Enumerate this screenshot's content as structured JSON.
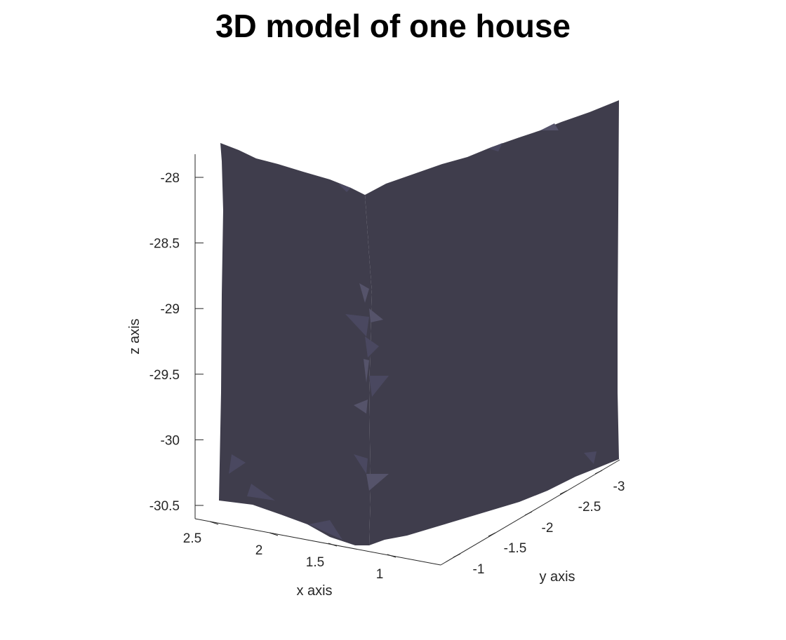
{
  "chart_data": {
    "type": "surface",
    "title": "3D model of one house",
    "xlabel": "x axis",
    "ylabel": "y axis",
    "zlabel": "z axis",
    "xlim": [
      0.7,
      2.7
    ],
    "ylim": [
      -3.2,
      -0.8
    ],
    "zlim": [
      -30.6,
      -27.8
    ],
    "x_ticks": [
      "2.5",
      "2",
      "1.5",
      "1"
    ],
    "y_ticks": [
      "-3",
      "-2.5",
      "-2",
      "-1.5",
      "-1"
    ],
    "z_ticks": [
      "-28",
      "-28.5",
      "-29",
      "-29.5",
      "-30",
      "-30.5"
    ],
    "z_tick_values": [
      -28,
      -28.5,
      -29,
      -29.5,
      -30,
      -30.5
    ],
    "surface_color": "#3f3d4c",
    "facet_highlight_color": "#5a586c",
    "grid": false,
    "wall_faces": [
      {
        "name": "wall along x",
        "x_range": [
          0.85,
          2.65
        ],
        "y_value": -0.85,
        "z_range": [
          -30.6,
          -27.75
        ]
      },
      {
        "name": "wall along y",
        "y_range": [
          -3.15,
          -0.85
        ],
        "x_value": 0.85,
        "z_range": [
          -30.6,
          -27.65
        ]
      }
    ]
  }
}
